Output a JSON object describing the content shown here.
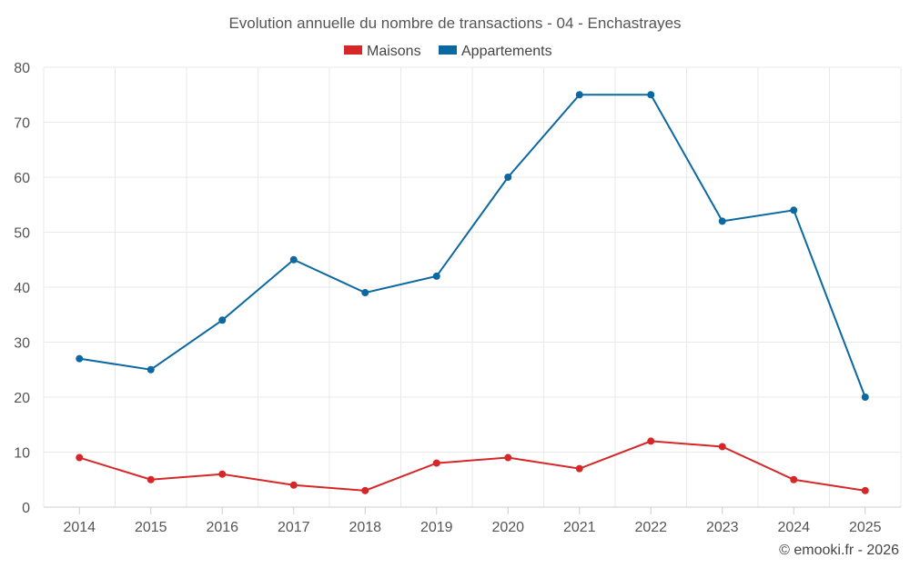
{
  "chart_data": {
    "type": "line",
    "title": "Evolution annuelle du nombre de transactions - 04 - Enchastrayes",
    "categories": [
      "2014",
      "2015",
      "2016",
      "2017",
      "2018",
      "2019",
      "2020",
      "2021",
      "2022",
      "2023",
      "2024",
      "2025"
    ],
    "series": [
      {
        "name": "Maisons",
        "color": "#d62728",
        "values": [
          9,
          5,
          6,
          4,
          3,
          8,
          9,
          7,
          12,
          11,
          5,
          3
        ]
      },
      {
        "name": "Appartements",
        "color": "#0b68a0",
        "values": [
          27,
          25,
          34,
          45,
          39,
          42,
          60,
          75,
          75,
          52,
          54,
          20
        ]
      }
    ],
    "ylim": [
      0,
      80
    ],
    "yticks": [
      0,
      10,
      20,
      30,
      40,
      50,
      60,
      70,
      80
    ],
    "xlabel": "",
    "ylabel": "",
    "grid": true,
    "legend_position": "top-center"
  },
  "credit": "© emooki.fr - 2026"
}
